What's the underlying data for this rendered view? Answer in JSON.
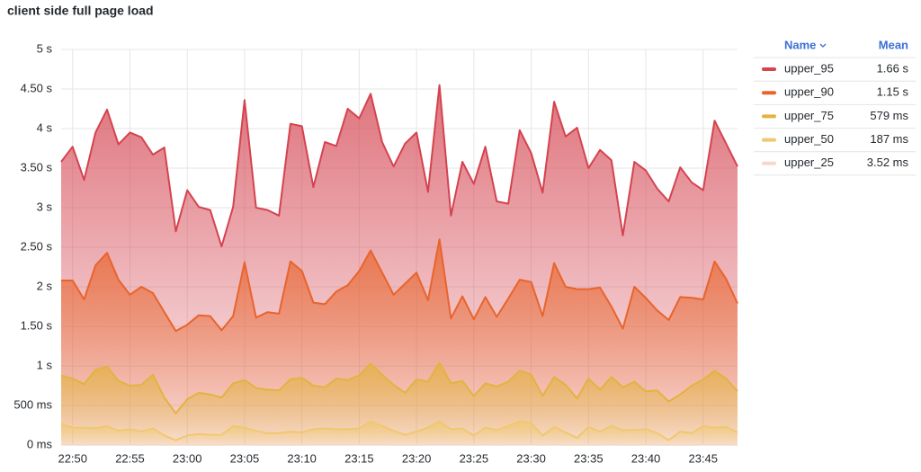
{
  "chart_data": {
    "type": "area",
    "title": "client side full page load",
    "legend_headers": {
      "name": "Name",
      "mean": "Mean"
    },
    "x": [
      "22:49",
      "22:50",
      "22:51",
      "22:52",
      "22:53",
      "22:54",
      "22:55",
      "22:56",
      "22:57",
      "22:58",
      "22:59",
      "23:00",
      "23:01",
      "23:02",
      "23:03",
      "23:04",
      "23:05",
      "23:06",
      "23:07",
      "23:08",
      "23:09",
      "23:10",
      "23:11",
      "23:12",
      "23:13",
      "23:14",
      "23:15",
      "23:16",
      "23:17",
      "23:18",
      "23:19",
      "23:20",
      "23:21",
      "23:22",
      "23:23",
      "23:24",
      "23:25",
      "23:26",
      "23:27",
      "23:28",
      "23:29",
      "23:30",
      "23:31",
      "23:32",
      "23:33",
      "23:34",
      "23:35",
      "23:36",
      "23:37",
      "23:38",
      "23:39",
      "23:40",
      "23:41",
      "23:42",
      "23:43",
      "23:44",
      "23:45",
      "23:46",
      "23:47",
      "23:48"
    ],
    "xlim": [
      "22:49",
      "23:48"
    ],
    "xticks": [
      "22:50",
      "22:55",
      "23:00",
      "23:05",
      "23:10",
      "23:15",
      "23:20",
      "23:25",
      "23:30",
      "23:35",
      "23:40",
      "23:45"
    ],
    "ylim": [
      0,
      5
    ],
    "yticks": [
      {
        "value": 0,
        "label": "0 ms"
      },
      {
        "value": 0.5,
        "label": "500 ms"
      },
      {
        "value": 1,
        "label": "1 s"
      },
      {
        "value": 1.5,
        "label": "1.50 s"
      },
      {
        "value": 2,
        "label": "2 s"
      },
      {
        "value": 2.5,
        "label": "2.50 s"
      },
      {
        "value": 3,
        "label": "3 s"
      },
      {
        "value": 3.5,
        "label": "3.50 s"
      },
      {
        "value": 4,
        "label": "4 s"
      },
      {
        "value": 4.5,
        "label": "4.50 s"
      },
      {
        "value": 5,
        "label": "5 s"
      }
    ],
    "grid": true,
    "legend": "right",
    "series": [
      {
        "name": "upper_95",
        "color": "#d4434f",
        "mean": "1.66 s",
        "values": [
          3.58,
          3.77,
          3.35,
          3.95,
          4.24,
          3.8,
          3.95,
          3.89,
          3.67,
          3.76,
          2.7,
          3.22,
          3.01,
          2.97,
          2.51,
          3.01,
          4.36,
          3.0,
          2.97,
          2.9,
          4.06,
          4.03,
          3.26,
          3.83,
          3.78,
          4.25,
          4.13,
          4.44,
          3.83,
          3.52,
          3.81,
          3.95,
          3.2,
          4.55,
          2.9,
          3.58,
          3.3,
          3.77,
          3.08,
          3.05,
          3.98,
          3.69,
          3.19,
          4.34,
          3.9,
          4.01,
          3.5,
          3.73,
          3.6,
          2.65,
          3.58,
          3.47,
          3.24,
          3.08,
          3.51,
          3.32,
          3.22,
          4.1,
          3.81,
          3.52
        ]
      },
      {
        "name": "upper_90",
        "color": "#e8642c",
        "mean": "1.15 s",
        "values": [
          2.08,
          2.08,
          1.84,
          2.27,
          2.43,
          2.09,
          1.9,
          2.0,
          1.92,
          1.68,
          1.44,
          1.52,
          1.64,
          1.63,
          1.45,
          1.63,
          2.31,
          1.61,
          1.68,
          1.66,
          2.32,
          2.2,
          1.8,
          1.78,
          1.94,
          2.02,
          2.2,
          2.46,
          2.18,
          1.9,
          2.04,
          2.18,
          1.83,
          2.6,
          1.6,
          1.88,
          1.59,
          1.87,
          1.62,
          1.85,
          2.09,
          2.06,
          1.63,
          2.3,
          2.0,
          1.97,
          1.97,
          1.99,
          1.75,
          1.47,
          2.0,
          1.86,
          1.7,
          1.58,
          1.87,
          1.86,
          1.84,
          2.32,
          2.1,
          1.79
        ]
      },
      {
        "name": "upper_75",
        "color": "#e3b340",
        "mean": "579 ms",
        "values": [
          0.88,
          0.84,
          0.77,
          0.95,
          0.99,
          0.81,
          0.75,
          0.76,
          0.89,
          0.6,
          0.4,
          0.58,
          0.66,
          0.64,
          0.6,
          0.78,
          0.82,
          0.72,
          0.7,
          0.69,
          0.83,
          0.85,
          0.75,
          0.73,
          0.84,
          0.82,
          0.88,
          1.03,
          0.89,
          0.76,
          0.66,
          0.83,
          0.8,
          1.04,
          0.78,
          0.81,
          0.62,
          0.78,
          0.74,
          0.8,
          0.94,
          0.89,
          0.62,
          0.86,
          0.76,
          0.59,
          0.84,
          0.7,
          0.86,
          0.73,
          0.8,
          0.68,
          0.69,
          0.55,
          0.64,
          0.75,
          0.83,
          0.94,
          0.84,
          0.68
        ]
      },
      {
        "name": "upper_50",
        "color": "#f0c870",
        "mean": "187 ms",
        "values": [
          0.27,
          0.22,
          0.22,
          0.21,
          0.24,
          0.18,
          0.2,
          0.17,
          0.21,
          0.12,
          0.06,
          0.12,
          0.14,
          0.13,
          0.13,
          0.24,
          0.22,
          0.18,
          0.15,
          0.15,
          0.17,
          0.16,
          0.2,
          0.21,
          0.2,
          0.2,
          0.21,
          0.3,
          0.24,
          0.18,
          0.13,
          0.17,
          0.22,
          0.3,
          0.2,
          0.21,
          0.12,
          0.22,
          0.19,
          0.24,
          0.3,
          0.28,
          0.12,
          0.23,
          0.16,
          0.09,
          0.23,
          0.17,
          0.24,
          0.19,
          0.19,
          0.2,
          0.15,
          0.06,
          0.17,
          0.15,
          0.24,
          0.22,
          0.23,
          0.16
        ]
      },
      {
        "name": "upper_25",
        "color": "#f6d8c8",
        "mean": "3.52 ms",
        "values": [
          0.004,
          0.004,
          0.003,
          0.004,
          0.004,
          0.003,
          0.004,
          0.003,
          0.004,
          0.003,
          0.002,
          0.003,
          0.003,
          0.003,
          0.003,
          0.004,
          0.004,
          0.003,
          0.003,
          0.003,
          0.003,
          0.003,
          0.004,
          0.004,
          0.004,
          0.004,
          0.004,
          0.005,
          0.004,
          0.003,
          0.003,
          0.003,
          0.004,
          0.005,
          0.004,
          0.004,
          0.003,
          0.004,
          0.003,
          0.004,
          0.005,
          0.005,
          0.003,
          0.004,
          0.003,
          0.002,
          0.004,
          0.003,
          0.004,
          0.003,
          0.003,
          0.004,
          0.003,
          0.002,
          0.003,
          0.003,
          0.004,
          0.004,
          0.004,
          0.003
        ]
      }
    ]
  }
}
